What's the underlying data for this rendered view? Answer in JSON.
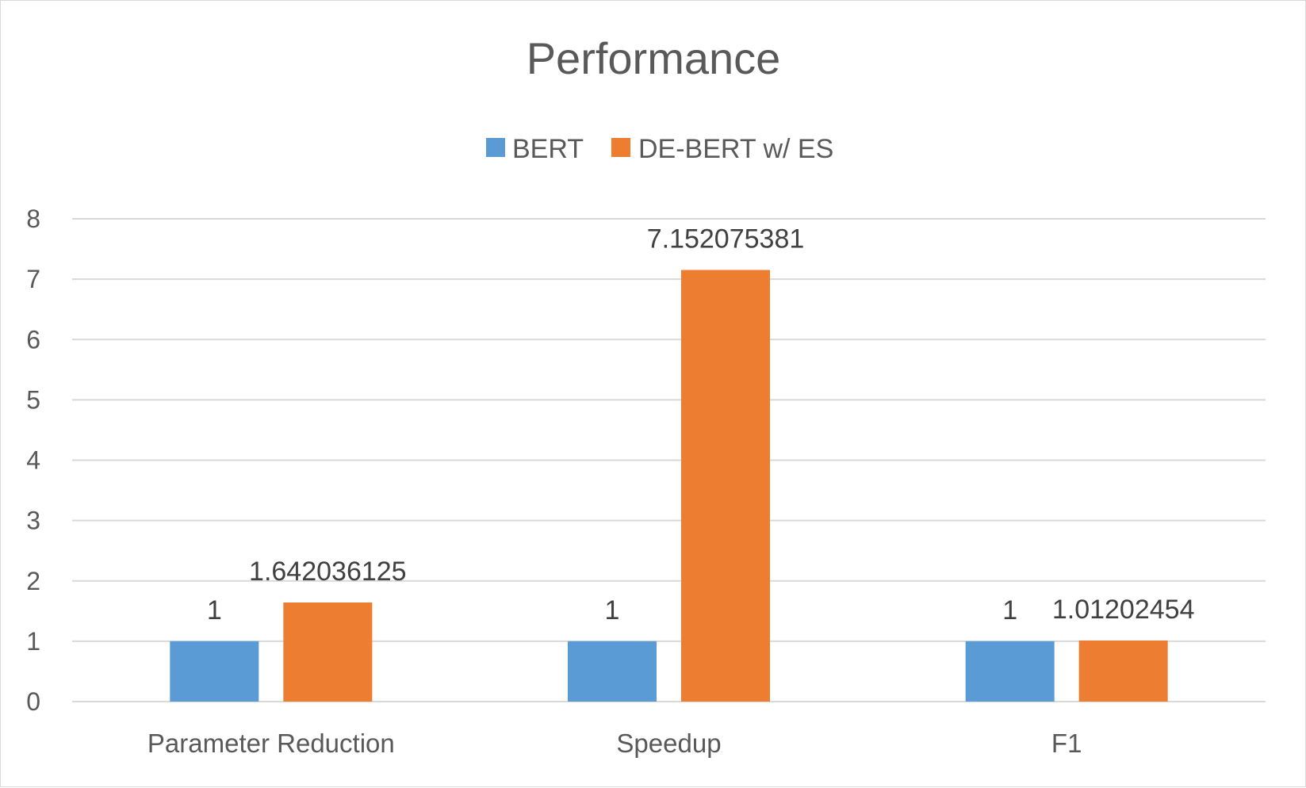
{
  "chart_data": {
    "type": "bar",
    "title": "Performance",
    "categories": [
      "Parameter Reduction",
      "Speedup",
      "F1"
    ],
    "series": [
      {
        "name": "BERT",
        "color": "#5b9bd5",
        "values": [
          1,
          1,
          1
        ],
        "labels": [
          "1",
          "1",
          "1"
        ]
      },
      {
        "name": "DE-BERT w/ ES",
        "color": "#ed7d31",
        "values": [
          1.642036125,
          7.152075381,
          1.01202454
        ],
        "labels": [
          "1.642036125",
          "7.152075381",
          "1.01202454"
        ]
      }
    ],
    "ylim": [
      0,
      8
    ],
    "yticks": [
      "0",
      "1",
      "2",
      "3",
      "4",
      "5",
      "6",
      "7",
      "8"
    ],
    "grid": true,
    "legend": "top"
  }
}
